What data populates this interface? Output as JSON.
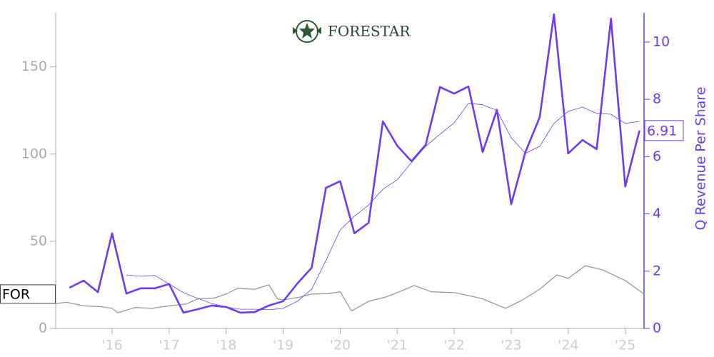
{
  "chart_data": {
    "type": "line",
    "title": "FORESTAR",
    "y2label": "Q Revenue Per Share",
    "xlim": [
      2015.01,
      2025.33
    ],
    "xticks": [
      {
        "value": 2016,
        "label": "'16"
      },
      {
        "value": 2017,
        "label": "'17"
      },
      {
        "value": 2018,
        "label": "'18"
      },
      {
        "value": 2019,
        "label": "'19"
      },
      {
        "value": 2020,
        "label": "'20"
      },
      {
        "value": 2021,
        "label": "'21"
      },
      {
        "value": 2022,
        "label": "'22"
      },
      {
        "value": 2023,
        "label": "'23"
      },
      {
        "value": 2024,
        "label": "'24"
      },
      {
        "value": 2025,
        "label": "'25"
      }
    ],
    "ylim": [
      0,
      181
    ],
    "yticks": [
      0,
      50,
      100,
      150
    ],
    "y2lim": [
      0,
      11.02
    ],
    "y2ticks": [
      0,
      2,
      4,
      6,
      8,
      10
    ],
    "x": [
      2015.25,
      2015.5,
      2015.75,
      2016.0,
      2016.25,
      2016.5,
      2016.75,
      2017.0,
      2017.25,
      2017.5,
      2017.75,
      2018.0,
      2018.25,
      2018.5,
      2018.75,
      2019.0,
      2019.25,
      2019.5,
      2019.75,
      2020.0,
      2020.25,
      2020.5,
      2020.75,
      2021.0,
      2021.25,
      2021.5,
      2021.75,
      2022.0,
      2022.25,
      2022.5,
      2022.75,
      2023.0,
      2023.25,
      2023.5,
      2023.75,
      2024.0,
      2024.25,
      2024.5,
      2024.75,
      2025.0,
      2025.25
    ],
    "series": [
      {
        "name": "FOR",
        "color": "#999999",
        "axis": "y",
        "width": 1.3,
        "x": [
          2015.01,
          2015.2,
          2015.5,
          2015.8,
          2016.0,
          2016.1,
          2016.4,
          2016.7,
          2017.0,
          2017.3,
          2017.5,
          2017.8,
          2018.0,
          2018.2,
          2018.5,
          2018.75,
          2018.9,
          2019.0,
          2019.3,
          2019.5,
          2019.8,
          2020.0,
          2020.2,
          2020.5,
          2020.8,
          2021.0,
          2021.3,
          2021.6,
          2022.0,
          2022.3,
          2022.5,
          2022.9,
          2023.2,
          2023.5,
          2023.8,
          2024.0,
          2024.3,
          2024.6,
          2025.0,
          2025.33
        ],
        "values": [
          14.3,
          15,
          13,
          12.5,
          11.5,
          9,
          12,
          11.5,
          13,
          14,
          17,
          17.5,
          19.7,
          23,
          22.5,
          25,
          17,
          16.4,
          18,
          19.7,
          20,
          21,
          10,
          15.6,
          18,
          20.5,
          24.6,
          21,
          20.5,
          18.5,
          17,
          11.5,
          16.4,
          22.5,
          30.7,
          28.7,
          36,
          33.6,
          27.5,
          19.7
        ]
      },
      {
        "color": "#6c3cf5",
        "axis": "y2",
        "width": 2.6,
        "values": [
          1.42,
          1.67,
          1.27,
          3.32,
          1.22,
          1.4,
          1.4,
          1.55,
          0.55,
          0.67,
          0.8,
          0.75,
          0.55,
          0.57,
          0.8,
          0.95,
          1.57,
          2.12,
          4.91,
          5.14,
          3.32,
          3.69,
          7.23,
          6.38,
          5.84,
          6.41,
          8.43,
          8.2,
          8.45,
          6.16,
          7.63,
          4.34,
          6.16,
          7.38,
          10.97,
          6.11,
          6.58,
          6.26,
          10.82,
          4.96,
          6.91
        ]
      },
      {
        "color": "#6c3cf5",
        "axis": "y2",
        "width": 0.8,
        "values": [
          null,
          null,
          null,
          null,
          1.87,
          1.82,
          1.85,
          1.55,
          1.25,
          1.05,
          0.87,
          0.75,
          0.67,
          0.67,
          0.65,
          0.7,
          0.95,
          1.37,
          2.37,
          3.44,
          3.92,
          4.31,
          4.86,
          5.19,
          5.79,
          6.36,
          6.78,
          7.18,
          7.86,
          7.81,
          7.61,
          6.66,
          6.11,
          6.36,
          7.16,
          7.58,
          7.73,
          7.51,
          7.48,
          7.16,
          7.23
        ]
      }
    ]
  }
}
